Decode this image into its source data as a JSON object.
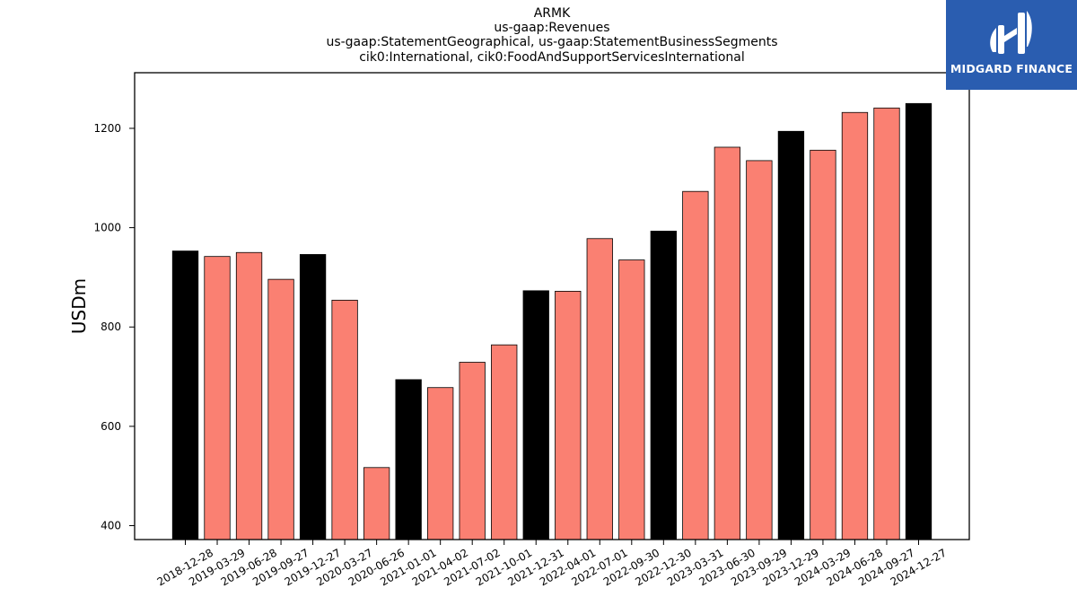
{
  "titles": {
    "line1": "ARMK",
    "line2": "us-gaap:Revenues",
    "line3": "us-gaap:StatementGeographical, us-gaap:StatementBusinessSegments",
    "line4": "cik0:International, cik0:FoodAndSupportServicesInternational"
  },
  "logo": {
    "text": "MIDGARD FINANCE",
    "background": "#2a5db0"
  },
  "chart_data": {
    "type": "bar",
    "ylabel": "USDm",
    "xlabel": "",
    "ylim": [
      372,
      1312
    ],
    "yticks": [
      400,
      600,
      800,
      1000,
      1200
    ],
    "colors": {
      "annual": "#000000",
      "quarterly": "#fa8072"
    },
    "categories": [
      "2018-12-28",
      "2019-03-29",
      "2019-06-28",
      "2019-09-27",
      "2019-12-27",
      "2020-03-27",
      "2020-06-26",
      "2021-01-01",
      "2021-04-02",
      "2021-07-02",
      "2021-10-01",
      "2021-12-31",
      "2022-04-01",
      "2022-07-01",
      "2022-09-30",
      "2022-12-30",
      "2023-03-31",
      "2023-06-30",
      "2023-09-29",
      "2023-12-29",
      "2024-03-29",
      "2024-06-28",
      "2024-09-27",
      "2024-12-27"
    ],
    "values": [
      953,
      942,
      950,
      896,
      946,
      854,
      517,
      694,
      678,
      729,
      764,
      873,
      872,
      978,
      935,
      993,
      1073,
      1162,
      1135,
      1194,
      1156,
      1232,
      1241,
      1250
    ],
    "highlight": [
      true,
      false,
      false,
      false,
      true,
      false,
      false,
      true,
      false,
      false,
      false,
      true,
      false,
      false,
      false,
      true,
      false,
      false,
      false,
      true,
      false,
      false,
      false,
      true
    ]
  }
}
